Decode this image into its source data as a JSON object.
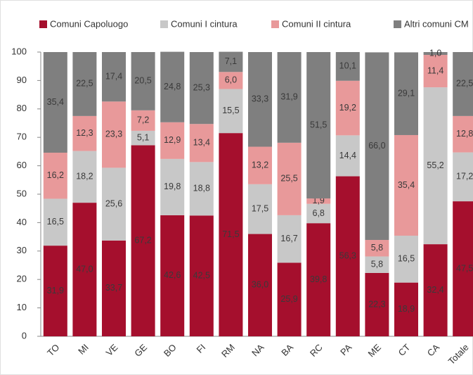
{
  "chart_data": {
    "type": "stacked_bar",
    "categories": [
      "TO",
      "MI",
      "VE",
      "GE",
      "BO",
      "FI",
      "RM",
      "NA",
      "BA",
      "RC",
      "PA",
      "ME",
      "CT",
      "CA",
      "Totale"
    ],
    "series": [
      {
        "name": "Comuni Capoluogo",
        "color": "#a50f2d",
        "values": [
          31.9,
          47.0,
          33.7,
          67.2,
          42.6,
          42.5,
          71.5,
          36.0,
          25.9,
          39.8,
          56.3,
          22.3,
          18.9,
          32.4,
          47.5
        ],
        "value_labels": [
          "31,9",
          "47,0",
          "33,7",
          "67,2",
          "42,6",
          "42,5",
          "71,5",
          "36,0",
          "25,9",
          "39,8",
          "56,3",
          "22,3",
          "18,9",
          "32,4",
          "47,5"
        ]
      },
      {
        "name": "Comuni I cintura",
        "color": "#c8c8c8",
        "values": [
          16.5,
          18.2,
          25.6,
          5.1,
          19.8,
          18.8,
          15.5,
          17.5,
          16.7,
          6.8,
          14.4,
          5.8,
          16.5,
          55.2,
          17.2
        ],
        "value_labels": [
          "16,5",
          "18,2",
          "25,6",
          "5,1",
          "19,8",
          "18,8",
          "15,5",
          "17,5",
          "16,7",
          "6,8",
          "14,4",
          "5,8",
          "16,5",
          "55,2",
          "17,2"
        ]
      },
      {
        "name": "Comuni II cintura",
        "color": "#e8999a",
        "values": [
          16.2,
          12.3,
          23.3,
          7.2,
          12.9,
          13.4,
          6.0,
          13.2,
          25.5,
          1.9,
          19.2,
          5.8,
          35.4,
          11.4,
          12.8
        ],
        "value_labels": [
          "16,2",
          "12,3",
          "23,3",
          "7,2",
          "12,9",
          "13,4",
          "6,0",
          "13,2",
          "25,5",
          "1,9",
          "19,2",
          "5,8",
          "35,4",
          "11,4",
          "12,8"
        ]
      },
      {
        "name": "Altri comuni CM",
        "color": "#7f7f7f",
        "values": [
          35.4,
          22.5,
          17.4,
          20.5,
          24.8,
          25.3,
          7.1,
          33.3,
          31.9,
          51.5,
          10.1,
          66.0,
          29.1,
          1.0,
          22.5
        ],
        "value_labels": [
          "35,4",
          "22,5",
          "17,4",
          "20,5",
          "24,8",
          "25,3",
          "7,1",
          "33,3",
          "31,9",
          "51,5",
          "10,1",
          "66,0",
          "29,1",
          "1,0",
          "22,5"
        ]
      }
    ],
    "ylim": [
      0,
      100
    ],
    "yticks": [
      0,
      10,
      20,
      30,
      40,
      50,
      60,
      70,
      80,
      90,
      100
    ],
    "legend": "top"
  }
}
